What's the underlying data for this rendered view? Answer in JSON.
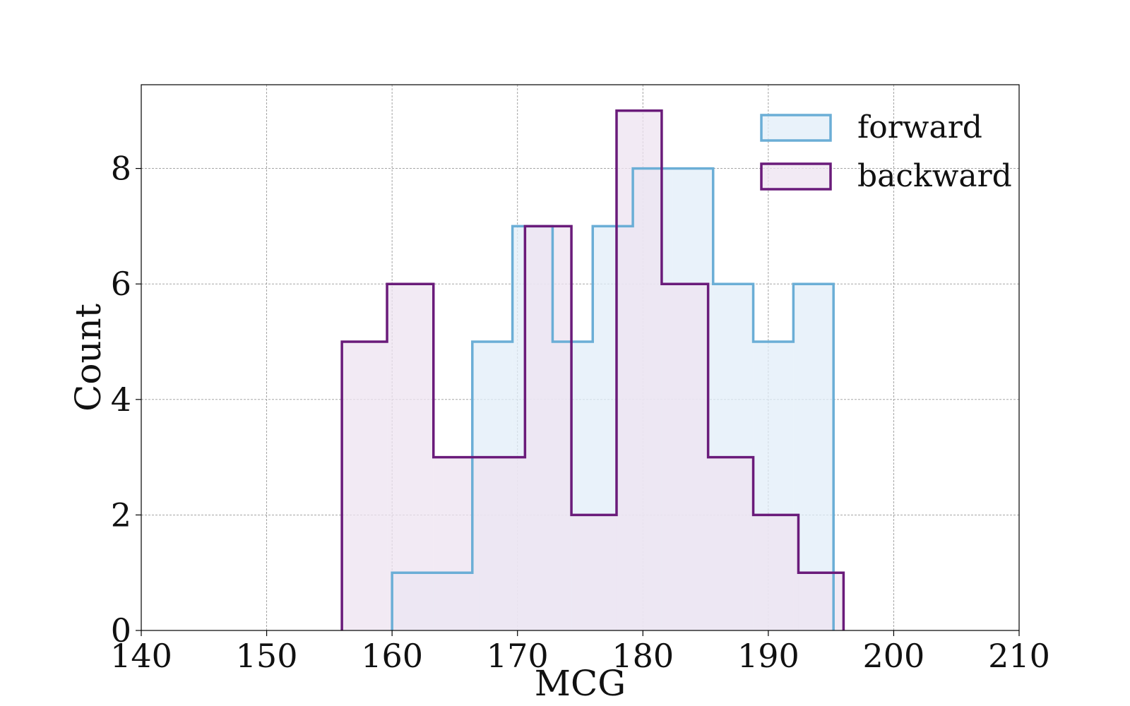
{
  "chart_data": {
    "type": "histogram",
    "title": "",
    "xlabel": "MCG",
    "ylabel": "Count",
    "xlim": [
      140,
      210
    ],
    "ylim": [
      0,
      9.45
    ],
    "x_ticks": [
      "140",
      "150",
      "160",
      "170",
      "180",
      "190",
      "200",
      "210"
    ],
    "y_ticks": [
      "0",
      "2",
      "4",
      "6",
      "8"
    ],
    "grid": true,
    "legend_position": "top-right",
    "series": [
      {
        "name": "forward",
        "color": "#6baed6",
        "fill": "#e2eef8",
        "bin_edges": [
          160.0,
          163.2,
          166.4,
          169.6,
          172.8,
          176.0,
          179.2,
          182.4,
          185.6,
          188.8,
          192.0,
          195.2
        ],
        "counts": [
          1,
          1,
          5,
          7,
          5,
          7,
          8,
          8,
          6,
          5,
          6
        ]
      },
      {
        "name": "backward",
        "color": "#6a1b7a",
        "fill": "#ede3f0",
        "bin_edges": [
          156.0,
          159.6,
          163.3,
          167.0,
          170.6,
          174.3,
          177.9,
          181.5,
          185.2,
          188.8,
          192.4,
          196.0
        ],
        "counts": [
          5,
          6,
          3,
          3,
          7,
          2,
          9,
          6,
          3,
          2,
          1
        ]
      }
    ]
  }
}
